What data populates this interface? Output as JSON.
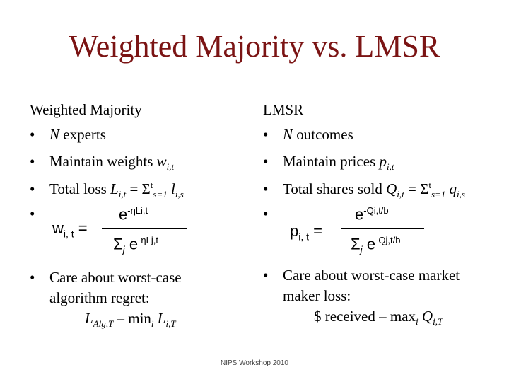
{
  "title": "Weighted Majority vs. LMSR",
  "left": {
    "heading": "Weighted Majority",
    "b1_var": "N",
    "b1_text": " experts",
    "b2_text": "Maintain weights ",
    "b2_var": "w",
    "b2_sub": "i,t",
    "b3_text": "Total loss ",
    "b3_var": "L",
    "b3_sub": "i,t",
    "b3_eq": " = Σ",
    "b3_sup": "t",
    "b3_sub2": "s=1",
    "b3_var2": " l",
    "b3_sub3": "i,s",
    "formula_lhs": "w",
    "formula_lhs_sub": "i, t",
    "formula_eq": " =",
    "num_e": "e",
    "num_sup": "-ηLi,t",
    "den_sigma": "Σ",
    "den_sub": "j",
    "den_e": " e",
    "den_sup": "-ηLj,t",
    "b5_line1": "Care about worst-case",
    "b5_line2": "algorithm regret:",
    "b5_l": "L",
    "b5_l_sub": "Alg,T",
    "b5_mid": " – min",
    "b5_min_sub": "i",
    "b5_l2": " L",
    "b5_l2_sub": "i,T"
  },
  "right": {
    "heading": "LMSR",
    "b1_var": "N",
    "b1_text": " outcomes",
    "b2_text": "Maintain prices ",
    "b2_var": "p",
    "b2_sub": "i,t",
    "b3_text": "Total shares sold ",
    "b3_var": "Q",
    "b3_sub": "i,t",
    "b3_eq": " = Σ",
    "b3_sup": "t",
    "b3_sub2": "s=1",
    "b3_var2": " q",
    "b3_sub3": "i,s",
    "formula_lhs": "p",
    "formula_lhs_sub": "i, t",
    "formula_eq": " =",
    "num_e": "e",
    "num_sup": "-Qi,t/b",
    "den_sigma": "Σ",
    "den_sub": "j",
    "den_e": " e",
    "den_sup": "-Qj,t/b",
    "b5_line1": "Care about worst-case market",
    "b5_line2": "maker loss:",
    "b5_dollar": "$ received – max",
    "b5_max_sub": "i",
    "b5_q": " Q",
    "b5_q_sub": "i,T"
  },
  "bullet_char": "•",
  "footer": "NIPS Workshop 2010"
}
